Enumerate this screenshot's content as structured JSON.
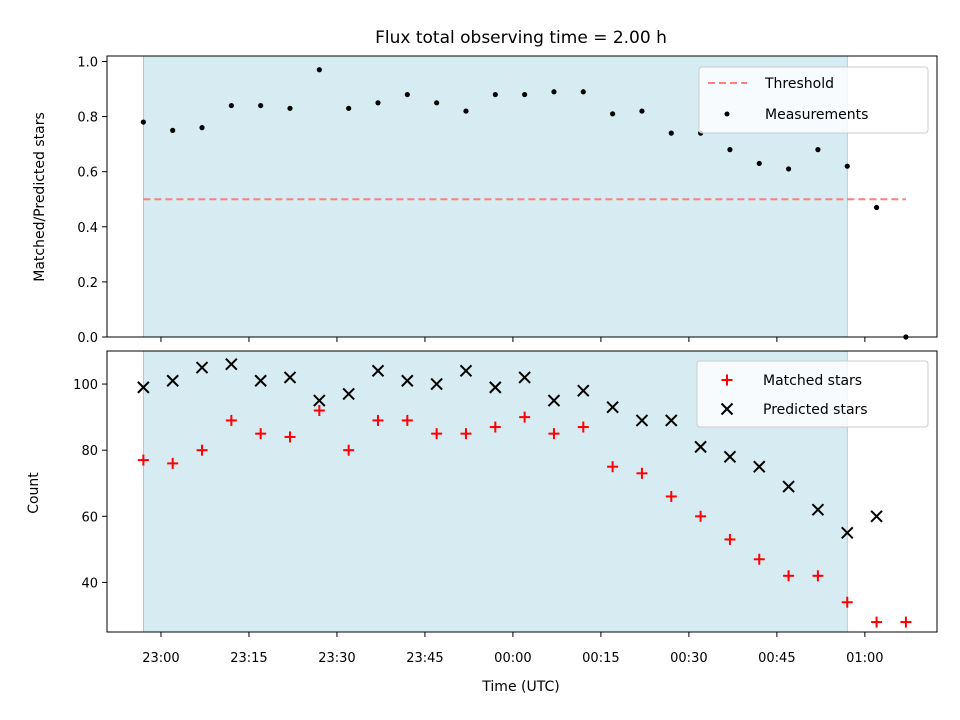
{
  "title": "Flux total observing time = 2.00 h",
  "colors": {
    "shade": "#add8e6",
    "threshold": "#ff7f7f",
    "measurement": "#000000",
    "matched": "#ff0000",
    "predicted": "#000000"
  },
  "chart_data": [
    {
      "type": "scatter",
      "ylabel": "Matched/Predicted stars",
      "ylim": [
        0.0,
        1.0
      ],
      "yticks": [
        "0.0",
        "0.2",
        "0.4",
        "0.6",
        "0.8",
        "1.0"
      ],
      "shaded_span": [
        "22:57",
        "00:57"
      ],
      "threshold": {
        "name": "Threshold",
        "value": 0.5,
        "x_range": [
          "22:57",
          "01:07"
        ]
      },
      "legend_position": "upper right",
      "series": [
        {
          "name": "Measurements",
          "marker": "dot",
          "x": [
            "22:57",
            "23:02",
            "23:07",
            "23:12",
            "23:17",
            "23:22",
            "23:27",
            "23:32",
            "23:37",
            "23:42",
            "23:47",
            "23:52",
            "23:57",
            "00:02",
            "00:07",
            "00:12",
            "00:17",
            "00:22",
            "00:27",
            "00:32",
            "00:37",
            "00:42",
            "00:47",
            "00:52",
            "00:57",
            "01:02",
            "01:07"
          ],
          "values": [
            0.78,
            0.75,
            0.76,
            0.84,
            0.84,
            0.83,
            0.97,
            0.83,
            0.85,
            0.88,
            0.85,
            0.82,
            0.88,
            0.88,
            0.89,
            0.89,
            0.81,
            0.82,
            0.74,
            0.74,
            0.68,
            0.63,
            0.61,
            0.68,
            0.62,
            0.47,
            0.0
          ]
        }
      ]
    },
    {
      "type": "scatter",
      "xlabel": "Time (UTC)",
      "ylabel": "Count",
      "ylim": [
        25,
        110
      ],
      "yticks": [
        "40",
        "60",
        "80",
        "100"
      ],
      "xticks": [
        "23:00",
        "23:15",
        "23:30",
        "23:45",
        "00:00",
        "00:15",
        "00:30",
        "00:45",
        "01:00"
      ],
      "shaded_span": [
        "22:57",
        "00:57"
      ],
      "legend_position": "upper right",
      "series": [
        {
          "name": "Matched stars",
          "marker": "plus",
          "x": [
            "22:57",
            "23:02",
            "23:07",
            "23:12",
            "23:17",
            "23:22",
            "23:27",
            "23:32",
            "23:37",
            "23:42",
            "23:47",
            "23:52",
            "23:57",
            "00:02",
            "00:07",
            "00:12",
            "00:17",
            "00:22",
            "00:27",
            "00:32",
            "00:37",
            "00:42",
            "00:47",
            "00:52",
            "00:57",
            "01:02",
            "01:07"
          ],
          "values": [
            77,
            76,
            80,
            89,
            85,
            84,
            92,
            80,
            89,
            89,
            85,
            85,
            87,
            90,
            85,
            87,
            75,
            73,
            66,
            60,
            53,
            47,
            42,
            42,
            34,
            28,
            28
          ]
        },
        {
          "name": "Predicted stars",
          "marker": "x",
          "x": [
            "22:57",
            "23:02",
            "23:07",
            "23:12",
            "23:17",
            "23:22",
            "23:27",
            "23:32",
            "23:37",
            "23:42",
            "23:47",
            "23:52",
            "23:57",
            "00:02",
            "00:07",
            "00:12",
            "00:17",
            "00:22",
            "00:27",
            "00:32",
            "00:37",
            "00:42",
            "00:47",
            "00:52",
            "00:57",
            "01:02"
          ],
          "values": [
            99,
            101,
            105,
            106,
            101,
            102,
            95,
            97,
            104,
            101,
            100,
            104,
            99,
            102,
            95,
            98,
            93,
            89,
            89,
            81,
            78,
            75,
            69,
            62,
            55,
            60
          ]
        }
      ]
    }
  ]
}
